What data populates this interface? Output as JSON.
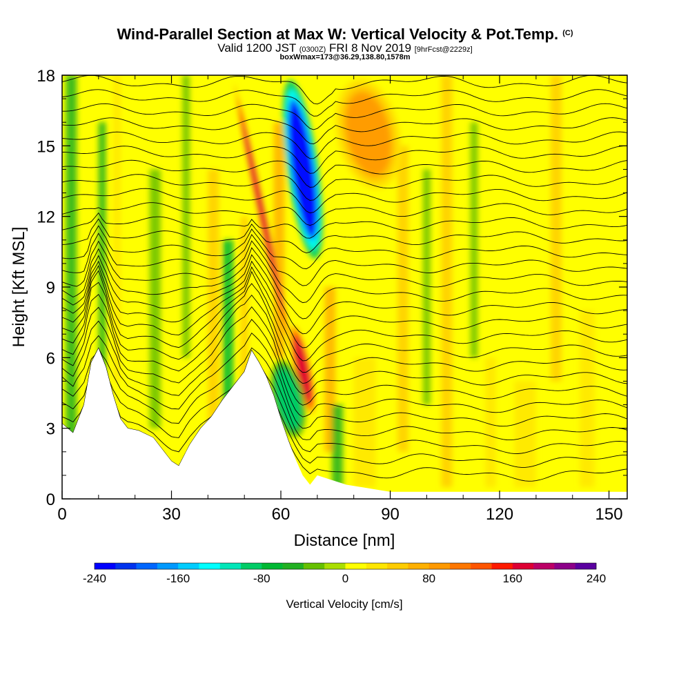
{
  "header": {
    "title_main": "Wind-Parallel Section at Max W: Vertical Velocity & Pot.Temp.",
    "title_mark": "(C)",
    "valid_prefix": "Valid 1200 JST",
    "valid_utc": "(0300Z)",
    "valid_date": "FRI 8 Nov 2019",
    "forecast": "[9hrFcst@2229z]",
    "box_info": "boxWmax=173@36.29,138.80,1578m"
  },
  "chart_data": {
    "type": "heatmap",
    "xlabel": "Distance [nm]",
    "ylabel": "Height [Kft MSL]",
    "xlim": [
      0,
      155
    ],
    "ylim": [
      0,
      18
    ],
    "x_ticks": [
      0,
      30,
      60,
      90,
      120,
      150
    ],
    "y_ticks": [
      0,
      3,
      6,
      9,
      12,
      15,
      18
    ],
    "grid": false,
    "max_w": {
      "value": 173,
      "units": "cm/s",
      "lat": 36.29,
      "lon": 138.8,
      "height_m": 1578
    },
    "colorbar": {
      "label": "Vertical Velocity [cm/s]",
      "min": -240,
      "max": 240,
      "step": 20,
      "tick_labels": [
        "-240",
        "-160",
        "-80",
        "0",
        "80",
        "160",
        "240"
      ],
      "colors": [
        "#0000ff",
        "#0033ee",
        "#0066ff",
        "#0099ff",
        "#00ccff",
        "#00ffff",
        "#00e6b8",
        "#00cc66",
        "#00b833",
        "#22b022",
        "#66c000",
        "#aade00",
        "#ffff00",
        "#ffe600",
        "#ffcc00",
        "#ffb000",
        "#ff9900",
        "#ff7700",
        "#ff5500",
        "#ff1a00",
        "#dd0033",
        "#bb0066",
        "#8c0088",
        "#5a00a0"
      ]
    },
    "terrain_profile": [
      [
        0,
        3.2
      ],
      [
        3,
        2.8
      ],
      [
        6,
        4.0
      ],
      [
        8,
        5.8
      ],
      [
        10,
        6.4
      ],
      [
        12,
        5.6
      ],
      [
        14,
        4.4
      ],
      [
        16,
        3.4
      ],
      [
        18,
        3.0
      ],
      [
        21,
        2.9
      ],
      [
        25,
        2.6
      ],
      [
        28,
        2.0
      ],
      [
        30,
        1.6
      ],
      [
        32,
        1.4
      ],
      [
        35,
        2.3
      ],
      [
        38,
        3.0
      ],
      [
        41,
        3.5
      ],
      [
        44,
        4.2
      ],
      [
        47,
        4.8
      ],
      [
        50,
        5.4
      ],
      [
        52,
        6.3
      ],
      [
        54,
        5.8
      ],
      [
        56,
        5.2
      ],
      [
        58,
        4.4
      ],
      [
        60,
        3.4
      ],
      [
        62,
        2.5
      ],
      [
        64,
        1.7
      ],
      [
        66,
        1.0
      ],
      [
        68,
        0.6
      ],
      [
        70,
        1.0
      ],
      [
        74,
        0.8
      ],
      [
        78,
        0.6
      ],
      [
        82,
        0.5
      ],
      [
        86,
        0.4
      ],
      [
        90,
        0.3
      ],
      [
        100,
        0.3
      ],
      [
        110,
        0.3
      ],
      [
        120,
        0.3
      ],
      [
        130,
        0.3
      ],
      [
        140,
        0.3
      ],
      [
        155,
        0.3
      ]
    ],
    "w_features": [
      {
        "kind": "updraft",
        "x": [
          54,
          56
        ],
        "y": [
          6,
          18
        ],
        "w": 170
      },
      {
        "kind": "downdraft",
        "x": [
          62,
          70
        ],
        "y": [
          10,
          18
        ],
        "w": -230
      },
      {
        "kind": "updraft",
        "x": [
          64,
          68
        ],
        "y": [
          3.5,
          7.5
        ],
        "w": 173
      },
      {
        "kind": "downdraft",
        "x": [
          58,
          66
        ],
        "y": [
          2.5,
          6
        ],
        "w": -100
      },
      {
        "kind": "updraft",
        "x": [
          76,
          92
        ],
        "y": [
          13,
          18
        ],
        "w": 80
      }
    ],
    "theta_contour_spacing_kft": 0.6
  }
}
